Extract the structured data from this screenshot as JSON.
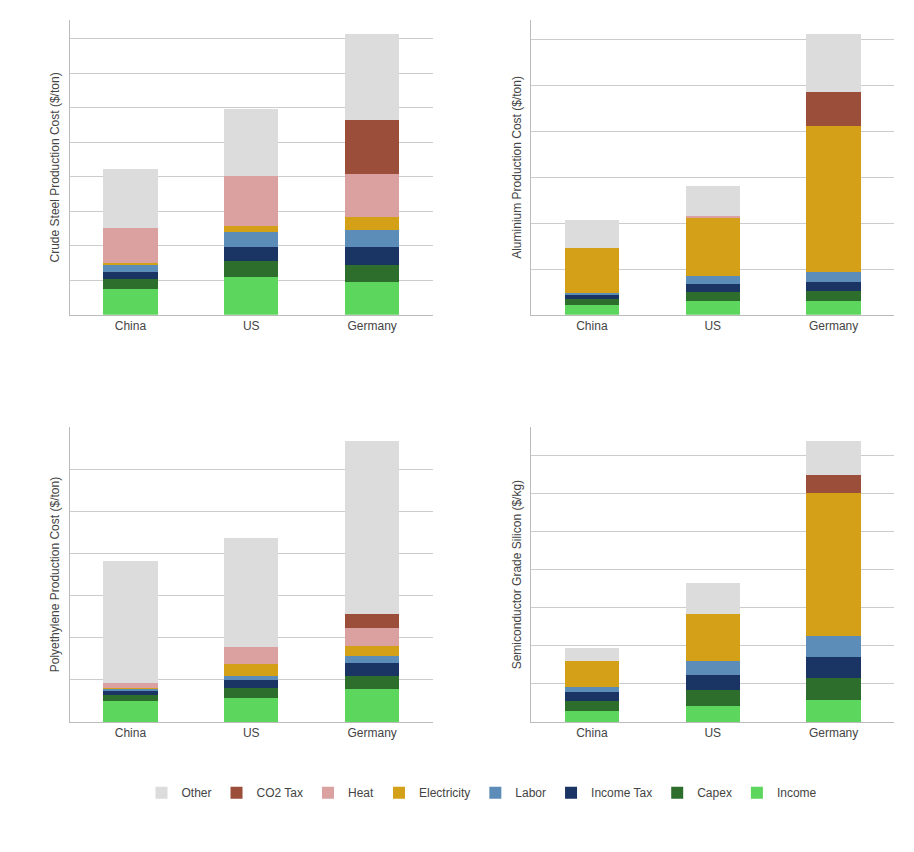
{
  "chart_data": [
    {
      "type": "bar",
      "stacked": true,
      "grid": true,
      "tick_labels": "x",
      "legend": "bottom",
      "ylabel": "Crude Steel Production Cost ($/ton)",
      "categories": [
        "China",
        "US",
        "Germany"
      ],
      "ylim": [
        0,
        853.65
      ],
      "yticks": [
        0,
        100,
        200,
        300,
        400,
        500,
        600,
        700,
        800
      ],
      "series": [
        {
          "name": "Income",
          "color": "#5CD65C",
          "values": [
            75,
            110,
            95
          ]
        },
        {
          "name": "Capex",
          "color": "#2D6E2D",
          "values": [
            28,
            45,
            50
          ]
        },
        {
          "name": "Income Tax",
          "color": "#1A3464",
          "values": [
            22,
            42,
            50
          ]
        },
        {
          "name": "Labor",
          "color": "#5B8DB8",
          "values": [
            18,
            42,
            50
          ]
        },
        {
          "name": "Electricity",
          "color": "#D4A017",
          "values": [
            8,
            18,
            38
          ]
        },
        {
          "name": "Heat",
          "color": "#DBA0A0",
          "values": [
            100,
            145,
            125
          ]
        },
        {
          "name": "CO2 Tax",
          "color": "#9B4E3A",
          "values": [
            0,
            0,
            155
          ]
        },
        {
          "name": "Other",
          "color": "#DCDCDC",
          "values": [
            170,
            195,
            250
          ]
        }
      ]
    },
    {
      "type": "bar",
      "stacked": true,
      "grid": true,
      "tick_labels": "x",
      "ylabel": "Aluminium Production Cost ($/ton)",
      "categories": [
        "China",
        "US",
        "Germany"
      ],
      "ylim": [
        0,
        1287.3
      ],
      "yticks": [
        0,
        200,
        400,
        600,
        800,
        1000,
        1200
      ],
      "series": [
        {
          "name": "Income",
          "color": "#5CD65C",
          "values": [
            45,
            60,
            60
          ]
        },
        {
          "name": "Capex",
          "color": "#2D6E2D",
          "values": [
            22,
            40,
            42
          ]
        },
        {
          "name": "Income Tax",
          "color": "#1A3464",
          "values": [
            18,
            35,
            42
          ]
        },
        {
          "name": "Labor",
          "color": "#5B8DB8",
          "values": [
            12,
            35,
            42
          ]
        },
        {
          "name": "Electricity",
          "color": "#D4A017",
          "values": [
            195,
            255,
            640
          ]
        },
        {
          "name": "Heat",
          "color": "#DBA0A0",
          "values": [
            0,
            8,
            0
          ]
        },
        {
          "name": "CO2 Tax",
          "color": "#9B4E3A",
          "values": [
            0,
            0,
            145
          ]
        },
        {
          "name": "Other",
          "color": "#DCDCDC",
          "values": [
            120,
            130,
            255
          ]
        }
      ]
    },
    {
      "type": "bar",
      "stacked": true,
      "grid": true,
      "tick_labels": "x",
      "ylabel": "Polyethylene Production Cost ($/ton)",
      "categories": [
        "China",
        "US",
        "Germany"
      ],
      "ylim": [
        0,
        1399.65
      ],
      "yticks": [
        0,
        200,
        400,
        600,
        800,
        1000,
        1200
      ],
      "series": [
        {
          "name": "Income",
          "color": "#5CD65C",
          "values": [
            100,
            115,
            155
          ]
        },
        {
          "name": "Capex",
          "color": "#2D6E2D",
          "values": [
            30,
            48,
            62
          ]
        },
        {
          "name": "Income Tax",
          "color": "#1A3464",
          "values": [
            18,
            35,
            62
          ]
        },
        {
          "name": "Labor",
          "color": "#5B8DB8",
          "values": [
            8,
            22,
            32
          ]
        },
        {
          "name": "Electricity",
          "color": "#D4A017",
          "values": [
            5,
            55,
            52
          ]
        },
        {
          "name": "Heat",
          "color": "#DBA0A0",
          "values": [
            22,
            80,
            85
          ]
        },
        {
          "name": "CO2 Tax",
          "color": "#9B4E3A",
          "values": [
            0,
            0,
            65
          ]
        },
        {
          "name": "Other",
          "color": "#DCDCDC",
          "values": [
            580,
            520,
            820
          ]
        }
      ]
    },
    {
      "type": "bar",
      "stacked": true,
      "grid": true,
      "tick_labels": "x",
      "ylabel": "Semiconductor Grade Silicon ($/kg)",
      "categories": [
        "China",
        "US",
        "Germany"
      ],
      "ylim": [
        0,
        773.85
      ],
      "yticks": [
        0,
        100,
        200,
        300,
        400,
        500,
        600,
        700
      ],
      "series": [
        {
          "name": "Income",
          "color": "#5CD65C",
          "values": [
            28,
            42,
            58
          ]
        },
        {
          "name": "Capex",
          "color": "#2D6E2D",
          "values": [
            28,
            42,
            58
          ]
        },
        {
          "name": "Income Tax",
          "color": "#1A3464",
          "values": [
            22,
            40,
            55
          ]
        },
        {
          "name": "Labor",
          "color": "#5B8DB8",
          "values": [
            15,
            35,
            55
          ]
        },
        {
          "name": "Electricity",
          "color": "#D4A017",
          "values": [
            68,
            125,
            375
          ]
        },
        {
          "name": "Heat",
          "color": "#DBA0A0",
          "values": [
            0,
            0,
            0
          ]
        },
        {
          "name": "CO2 Tax",
          "color": "#9B4E3A",
          "values": [
            0,
            0,
            48
          ]
        },
        {
          "name": "Other",
          "color": "#DCDCDC",
          "values": [
            32,
            80,
            88
          ]
        }
      ]
    }
  ]
}
